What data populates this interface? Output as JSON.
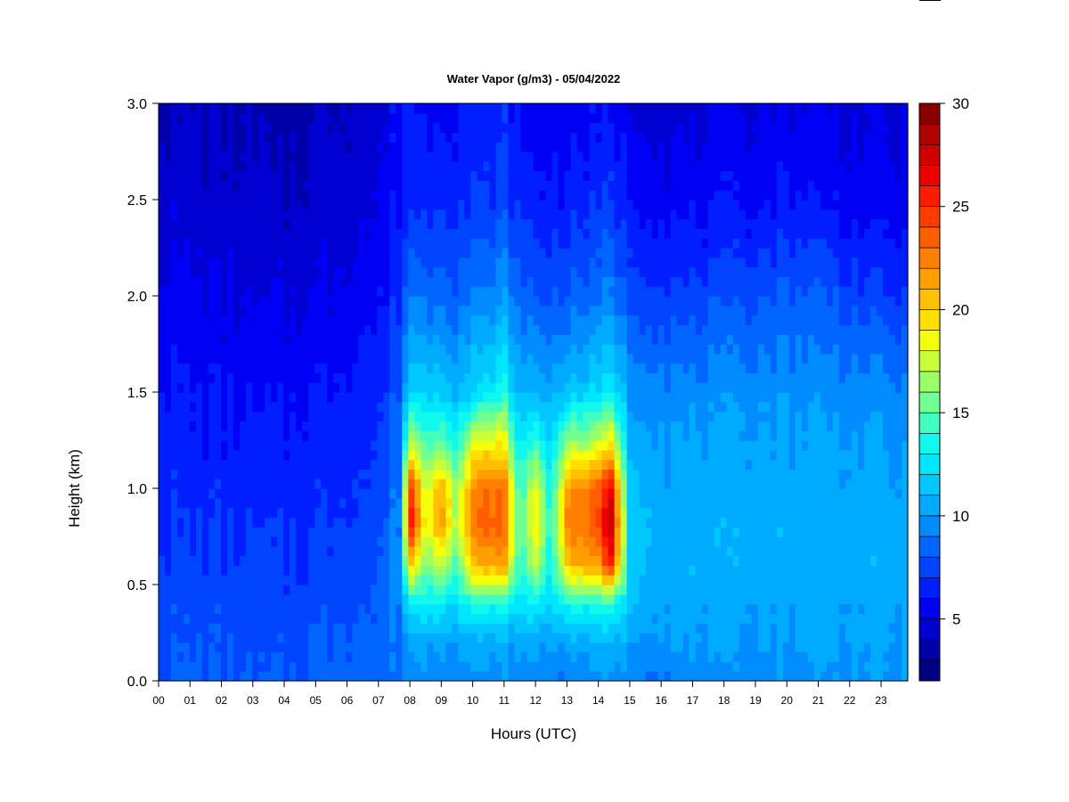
{
  "chart_data": {
    "type": "heatmap",
    "title": "Water Vapor (g/m3) - 05/04/2022",
    "xlabel": "Hours (UTC)",
    "ylabel": "Height (km)",
    "xlim": [
      0,
      23.85
    ],
    "ylim": [
      0,
      3.0
    ],
    "x_ticks": [
      "00",
      "01",
      "02",
      "03",
      "04",
      "05",
      "06",
      "07",
      "08",
      "09",
      "10",
      "11",
      "12",
      "13",
      "14",
      "15",
      "16",
      "17",
      "18",
      "19",
      "20",
      "21",
      "22",
      "23"
    ],
    "y_ticks": [
      "0.0",
      "0.5",
      "1.0",
      "1.5",
      "2.0",
      "2.5",
      "3.0"
    ],
    "colorbar": {
      "min": 2,
      "max": 30,
      "ticks": [
        "5",
        "10",
        "15",
        "20",
        "25",
        "30"
      ],
      "colors": [
        "#000080",
        "#0000A8",
        "#0000D0",
        "#0000F5",
        "#001EFF",
        "#0044FF",
        "#0066FF",
        "#008CFF",
        "#00AAFF",
        "#00C8FF",
        "#00E6FF",
        "#12F8EC",
        "#40FFC0",
        "#70FF90",
        "#9AFF66",
        "#C8FF38",
        "#F5FF0A",
        "#FFE000",
        "#FFC000",
        "#FFA000",
        "#FF8000",
        "#FF5E00",
        "#FF3C00",
        "#FF1A00",
        "#EE0000",
        "#D00000",
        "#B00000",
        "#8A0000"
      ]
    },
    "profile": {
      "height_km": [
        0.0,
        0.2,
        0.4,
        0.6,
        0.8,
        1.0,
        1.2,
        1.5,
        2.0,
        2.5,
        3.0
      ],
      "hours": [
        0,
        1,
        2,
        3,
        4,
        5,
        6,
        7,
        7.7,
        8,
        8.5,
        9,
        9.5,
        10,
        10.5,
        11,
        11.5,
        12,
        12.5,
        13,
        13.5,
        14,
        14.4,
        15,
        16,
        17,
        18,
        19,
        20,
        21,
        22,
        23,
        23.85
      ],
      "water_vapor_gm3": [
        [
          8.0,
          7.8,
          7.6,
          7.4,
          7.0,
          6.8,
          6.6,
          6.2,
          5.4,
          4.6,
          4.0
        ],
        [
          8.2,
          7.9,
          7.6,
          7.2,
          6.9,
          6.6,
          6.4,
          6.0,
          5.2,
          4.5,
          4.0
        ],
        [
          8.1,
          7.8,
          7.5,
          7.2,
          6.9,
          6.6,
          6.3,
          5.9,
          5.0,
          4.4,
          3.9
        ],
        [
          7.9,
          7.7,
          7.4,
          7.1,
          6.8,
          6.5,
          6.2,
          5.8,
          4.8,
          4.2,
          3.7
        ],
        [
          7.8,
          7.6,
          7.3,
          7.0,
          6.8,
          6.5,
          6.2,
          5.8,
          4.8,
          4.1,
          3.5
        ],
        [
          8.5,
          8.2,
          7.6,
          7.2,
          7.0,
          6.7,
          6.4,
          6.0,
          5.0,
          4.4,
          4.0
        ],
        [
          8.5,
          8.3,
          7.9,
          7.6,
          7.3,
          7.0,
          6.7,
          6.3,
          5.3,
          4.6,
          4.2
        ],
        [
          8.2,
          8.3,
          8.0,
          7.8,
          7.6,
          7.3,
          7.0,
          6.6,
          5.8,
          5.0,
          4.6
        ],
        [
          8.6,
          9.0,
          9.5,
          9.6,
          9.5,
          9.3,
          9.0,
          8.4,
          7.0,
          6.0,
          6.2
        ],
        [
          9.5,
          10.3,
          13.0,
          20.0,
          26.5,
          25.5,
          18.5,
          12.0,
          9.0,
          7.0,
          6.2
        ],
        [
          9.5,
          10.5,
          13.0,
          15.5,
          18.0,
          17.5,
          15.0,
          11.5,
          8.6,
          6.6,
          5.8
        ],
        [
          9.5,
          10.5,
          13.0,
          17.5,
          22.0,
          21.5,
          16.0,
          12.0,
          8.8,
          7.0,
          6.0
        ],
        [
          9.3,
          10.3,
          12.5,
          14.5,
          17.0,
          16.5,
          14.0,
          11.0,
          8.4,
          6.8,
          6.0
        ],
        [
          9.5,
          10.5,
          13.5,
          20.5,
          22.5,
          22.0,
          18.5,
          12.0,
          9.0,
          6.9,
          6.0
        ],
        [
          9.5,
          10.5,
          13.5,
          21.0,
          23.5,
          23.0,
          19.5,
          12.5,
          9.2,
          7.0,
          6.2
        ],
        [
          9.5,
          10.6,
          13.5,
          21.5,
          23.0,
          23.0,
          19.5,
          13.5,
          10.0,
          7.6,
          6.6
        ],
        [
          9.4,
          10.3,
          12.3,
          13.5,
          14.0,
          13.5,
          12.5,
          10.5,
          8.2,
          6.5,
          5.6
        ],
        [
          9.4,
          10.4,
          13.0,
          17.0,
          19.5,
          18.5,
          15.0,
          11.0,
          8.0,
          6.3,
          5.4
        ],
        [
          9.2,
          10.1,
          12.0,
          13.0,
          13.5,
          13.0,
          12.0,
          10.5,
          7.8,
          6.2,
          5.4
        ],
        [
          9.4,
          10.4,
          13.5,
          20.0,
          22.5,
          21.5,
          17.0,
          11.5,
          8.2,
          6.4,
          5.4
        ],
        [
          9.5,
          10.5,
          13.5,
          21.0,
          23.0,
          22.5,
          17.5,
          11.5,
          8.4,
          6.6,
          5.5
        ],
        [
          9.5,
          10.5,
          13.5,
          21.5,
          24.0,
          23.5,
          18.5,
          12.0,
          8.6,
          6.8,
          5.6
        ],
        [
          9.8,
          11.0,
          14.0,
          25.0,
          28.0,
          27.0,
          20.0,
          13.0,
          9.2,
          7.2,
          5.8
        ],
        [
          9.3,
          10.2,
          11.5,
          12.0,
          12.0,
          11.5,
          11.0,
          10.0,
          7.8,
          6.2,
          5.0
        ],
        [
          9.2,
          10.0,
          10.5,
          10.8,
          10.8,
          10.5,
          10.3,
          9.5,
          7.4,
          5.6,
          4.7
        ],
        [
          9.3,
          10.0,
          10.4,
          10.6,
          10.5,
          10.4,
          10.2,
          9.4,
          7.3,
          5.5,
          4.7
        ],
        [
          9.4,
          10.0,
          10.4,
          10.6,
          10.6,
          10.5,
          10.3,
          9.6,
          7.6,
          5.8,
          4.9
        ],
        [
          9.6,
          10.0,
          10.4,
          10.6,
          10.6,
          10.5,
          10.3,
          9.7,
          7.8,
          5.8,
          5.0
        ],
        [
          9.7,
          10.1,
          10.5,
          10.6,
          10.6,
          10.5,
          10.4,
          9.8,
          8.2,
          6.2,
          5.2
        ],
        [
          9.8,
          10.2,
          10.5,
          10.6,
          10.6,
          10.5,
          10.4,
          9.8,
          8.1,
          6.0,
          5.0
        ],
        [
          9.8,
          10.2,
          10.4,
          10.6,
          10.6,
          10.4,
          10.2,
          9.6,
          7.6,
          5.6,
          4.8
        ],
        [
          9.8,
          10.1,
          10.4,
          10.5,
          10.5,
          10.3,
          10.0,
          9.4,
          7.2,
          5.4,
          4.8
        ],
        [
          9.8,
          10.0,
          10.3,
          10.4,
          10.4,
          10.2,
          9.8,
          9.0,
          6.9,
          5.2,
          4.7
        ]
      ]
    },
    "grid": false,
    "legend": "colorbar-right"
  }
}
